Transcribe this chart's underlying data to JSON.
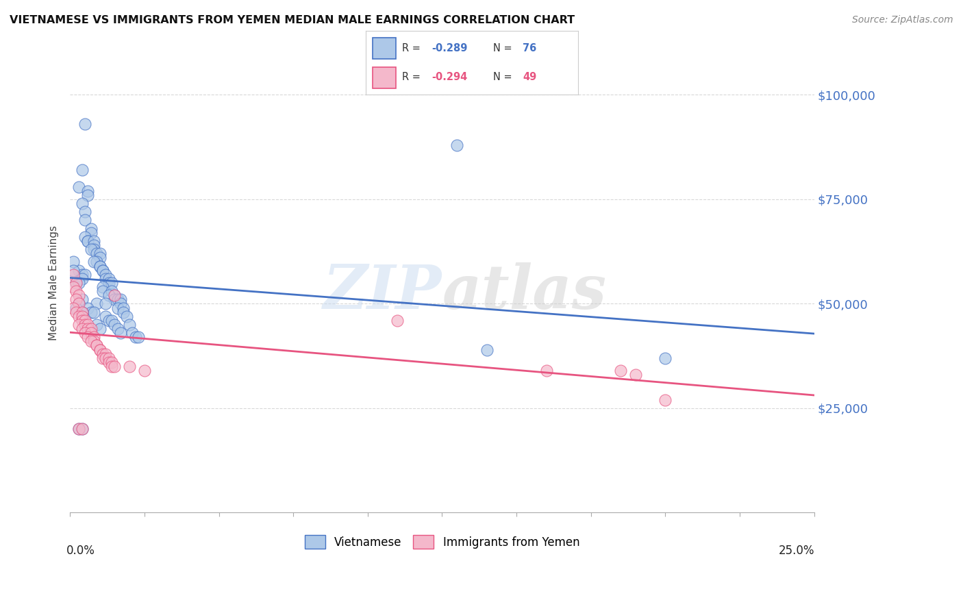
{
  "title": "VIETNAMESE VS IMMIGRANTS FROM YEMEN MEDIAN MALE EARNINGS CORRELATION CHART",
  "source": "Source: ZipAtlas.com",
  "ylabel": "Median Male Earnings",
  "yticks": [
    25000,
    50000,
    75000,
    100000
  ],
  "ytick_labels": [
    "$25,000",
    "$50,000",
    "$75,000",
    "$100,000"
  ],
  "xlim": [
    0.0,
    0.25
  ],
  "ylim": [
    0,
    110000
  ],
  "watermark": "ZIPatlas",
  "legend_blue_label": "Vietnamese",
  "legend_pink_label": "Immigrants from Yemen",
  "blue_color": "#adc8e8",
  "pink_color": "#f4b8cb",
  "blue_line_color": "#4472c4",
  "pink_line_color": "#e75480",
  "blue_scatter": [
    [
      0.005,
      93000
    ],
    [
      0.004,
      82000
    ],
    [
      0.003,
      78000
    ],
    [
      0.006,
      77000
    ],
    [
      0.006,
      76000
    ],
    [
      0.004,
      74000
    ],
    [
      0.005,
      72000
    ],
    [
      0.005,
      70000
    ],
    [
      0.007,
      68000
    ],
    [
      0.007,
      67000
    ],
    [
      0.005,
      66000
    ],
    [
      0.006,
      65000
    ],
    [
      0.006,
      65000
    ],
    [
      0.008,
      65000
    ],
    [
      0.008,
      64000
    ],
    [
      0.008,
      63000
    ],
    [
      0.007,
      63000
    ],
    [
      0.009,
      62000
    ],
    [
      0.01,
      62000
    ],
    [
      0.01,
      61000
    ],
    [
      0.009,
      60000
    ],
    [
      0.008,
      60000
    ],
    [
      0.01,
      59000
    ],
    [
      0.01,
      59000
    ],
    [
      0.011,
      58000
    ],
    [
      0.011,
      58000
    ],
    [
      0.003,
      58000
    ],
    [
      0.004,
      57000
    ],
    [
      0.012,
      57000
    ],
    [
      0.005,
      57000
    ],
    [
      0.012,
      56000
    ],
    [
      0.004,
      56000
    ],
    [
      0.013,
      56000
    ],
    [
      0.013,
      55000
    ],
    [
      0.014,
      55000
    ],
    [
      0.002,
      55000
    ],
    [
      0.003,
      55000
    ],
    [
      0.011,
      54000
    ],
    [
      0.011,
      53000
    ],
    [
      0.014,
      53000
    ],
    [
      0.015,
      52000
    ],
    [
      0.013,
      52000
    ],
    [
      0.015,
      51000
    ],
    [
      0.016,
      51000
    ],
    [
      0.017,
      51000
    ],
    [
      0.004,
      51000
    ],
    [
      0.003,
      50000
    ],
    [
      0.009,
      50000
    ],
    [
      0.012,
      50000
    ],
    [
      0.017,
      50000
    ],
    [
      0.016,
      49000
    ],
    [
      0.002,
      49000
    ],
    [
      0.018,
      49000
    ],
    [
      0.006,
      49000
    ],
    [
      0.007,
      48000
    ],
    [
      0.008,
      48000
    ],
    [
      0.004,
      48000
    ],
    [
      0.018,
      48000
    ],
    [
      0.012,
      47000
    ],
    [
      0.019,
      47000
    ],
    [
      0.013,
      46000
    ],
    [
      0.014,
      46000
    ],
    [
      0.015,
      45000
    ],
    [
      0.009,
      45000
    ],
    [
      0.02,
      45000
    ],
    [
      0.01,
      44000
    ],
    [
      0.016,
      44000
    ],
    [
      0.017,
      43000
    ],
    [
      0.021,
      43000
    ],
    [
      0.022,
      42000
    ],
    [
      0.023,
      42000
    ],
    [
      0.14,
      39000
    ],
    [
      0.003,
      20000
    ],
    [
      0.004,
      20000
    ],
    [
      0.2,
      37000
    ],
    [
      0.13,
      88000
    ],
    [
      0.001,
      60000
    ],
    [
      0.001,
      58000
    ]
  ],
  "pink_scatter": [
    [
      0.001,
      57000
    ],
    [
      0.002,
      55000
    ],
    [
      0.001,
      54000
    ],
    [
      0.002,
      53000
    ],
    [
      0.003,
      52000
    ],
    [
      0.002,
      51000
    ],
    [
      0.003,
      50000
    ],
    [
      0.001,
      49000
    ],
    [
      0.002,
      48000
    ],
    [
      0.004,
      48000
    ],
    [
      0.003,
      47000
    ],
    [
      0.004,
      47000
    ],
    [
      0.004,
      46000
    ],
    [
      0.005,
      46000
    ],
    [
      0.003,
      45000
    ],
    [
      0.005,
      45000
    ],
    [
      0.006,
      45000
    ],
    [
      0.004,
      44000
    ],
    [
      0.006,
      44000
    ],
    [
      0.007,
      44000
    ],
    [
      0.005,
      43000
    ],
    [
      0.007,
      43000
    ],
    [
      0.006,
      42000
    ],
    [
      0.008,
      42000
    ],
    [
      0.008,
      41000
    ],
    [
      0.007,
      41000
    ],
    [
      0.009,
      40000
    ],
    [
      0.009,
      40000
    ],
    [
      0.01,
      39000
    ],
    [
      0.01,
      39000
    ],
    [
      0.011,
      38000
    ],
    [
      0.012,
      38000
    ],
    [
      0.011,
      37000
    ],
    [
      0.012,
      37000
    ],
    [
      0.013,
      37000
    ],
    [
      0.013,
      36000
    ],
    [
      0.014,
      36000
    ],
    [
      0.014,
      35000
    ],
    [
      0.015,
      35000
    ],
    [
      0.02,
      35000
    ],
    [
      0.025,
      34000
    ],
    [
      0.11,
      46000
    ],
    [
      0.16,
      34000
    ],
    [
      0.185,
      34000
    ],
    [
      0.19,
      33000
    ],
    [
      0.2,
      27000
    ],
    [
      0.003,
      20000
    ],
    [
      0.004,
      20000
    ],
    [
      0.015,
      52000
    ]
  ],
  "background_color": "#ffffff",
  "grid_color": "#d8d8d8"
}
